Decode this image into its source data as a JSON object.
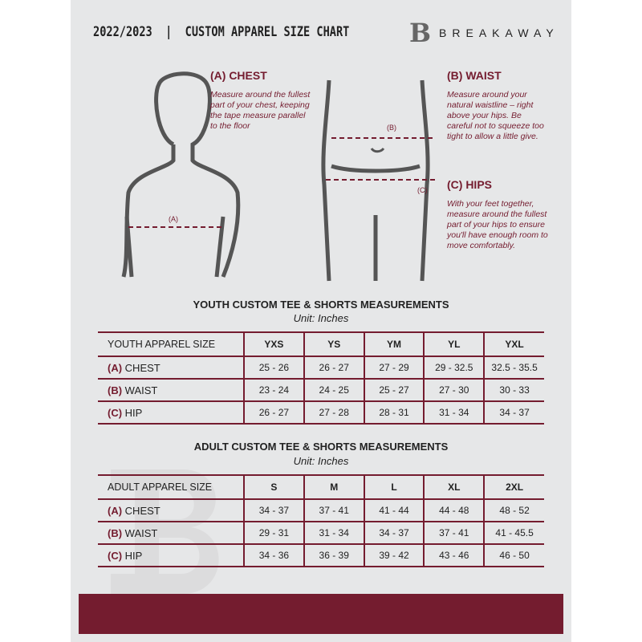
{
  "header": {
    "title": "2022/2023  |  CUSTOM APPAREL SIZE CHART",
    "brand": "BREAKAWAY",
    "logo": "B"
  },
  "measures": {
    "chest": {
      "title": "(A) CHEST",
      "desc": "Measure around the fullest part of your chest, keeping the tape measure parallel to the floor",
      "marker": "(A)"
    },
    "waist": {
      "title": "(B) WAIST",
      "desc": "Measure around your natural waistline – right above your hips. Be careful not to squeeze too tight to allow a little give.",
      "marker": "(B)"
    },
    "hips": {
      "title": "(C) HIPS",
      "desc": "With your feet together, measure around the fullest part of your hips to ensure you'll have enough room to move comfortably.",
      "marker": "(C)"
    }
  },
  "youth": {
    "title": "YOUTH CUSTOM TEE & SHORTS MEASUREMENTS",
    "unit": "Unit: Inches",
    "size_label": "YOUTH APPAREL SIZE",
    "sizes": [
      "YXS",
      "YS",
      "YM",
      "YL",
      "YXL"
    ],
    "rows": [
      {
        "code": "(A)",
        "name": "CHEST",
        "values": [
          "25 - 26",
          "26 - 27",
          "27 - 29",
          "29 - 32.5",
          "32.5 - 35.5"
        ]
      },
      {
        "code": "(B)",
        "name": "WAIST",
        "values": [
          "23 - 24",
          "24 - 25",
          "25 - 27",
          "27 - 30",
          "30 - 33"
        ]
      },
      {
        "code": "(C)",
        "name": "HIP",
        "values": [
          "26 - 27",
          "27 - 28",
          "28 - 31",
          "31 - 34",
          "34 - 37"
        ]
      }
    ]
  },
  "adult": {
    "title": "ADULT CUSTOM TEE & SHORTS MEASUREMENTS",
    "unit": "Unit: Inches",
    "size_label": "ADULT APPAREL SIZE",
    "sizes": [
      "S",
      "M",
      "L",
      "XL",
      "2XL"
    ],
    "rows": [
      {
        "code": "(A)",
        "name": "CHEST",
        "values": [
          "34 - 37",
          "37 - 41",
          "41 - 44",
          "44 - 48",
          "48 - 52"
        ]
      },
      {
        "code": "(B)",
        "name": "WAIST",
        "values": [
          "29 - 31",
          "31 - 34",
          "34 - 37",
          "37 - 41",
          "41 - 45.5"
        ]
      },
      {
        "code": "(C)",
        "name": "HIP",
        "values": [
          "34 - 36",
          "36 - 39",
          "39 - 42",
          "43 - 46",
          "46 - 50"
        ]
      }
    ]
  },
  "colors": {
    "accent": "#741c2f",
    "background": "#e6e7e8"
  }
}
